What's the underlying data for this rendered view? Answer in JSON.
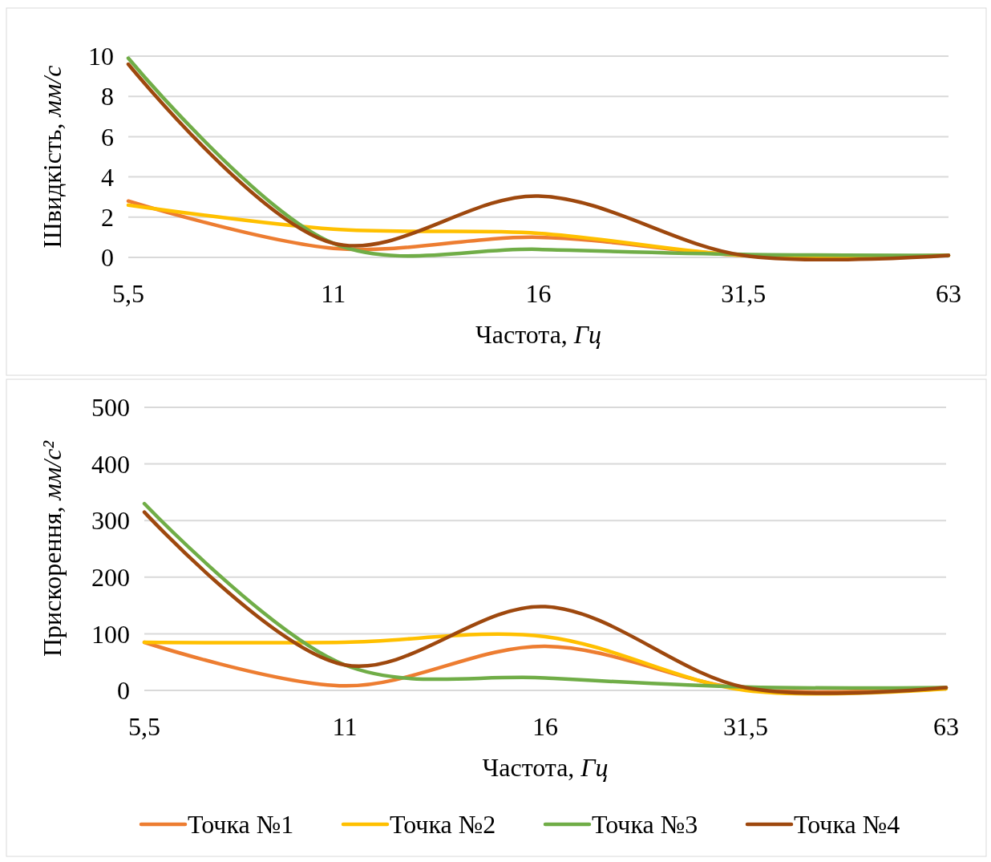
{
  "chart_data": [
    {
      "type": "line",
      "ylabel": "Швидкість, мм/с",
      "xlabel": "Частота, Гц",
      "categories": [
        "5,5",
        "11",
        "16",
        "31,5",
        "63"
      ],
      "ylim": [
        0,
        10
      ],
      "yticks": [
        0,
        2,
        4,
        6,
        8,
        10
      ],
      "grid": "y",
      "legend": false,
      "series": [
        {
          "color": "#ed7d31",
          "values": [
            2.8,
            0.45,
            1.0,
            0.1,
            0.1
          ]
        },
        {
          "color": "#ffc000",
          "values": [
            2.6,
            1.4,
            1.2,
            0.1,
            0.1
          ]
        },
        {
          "color": "#70ad47",
          "values": [
            9.9,
            0.7,
            0.4,
            0.15,
            0.1
          ]
        },
        {
          "color": "#9e480e",
          "values": [
            9.6,
            0.7,
            3.05,
            0.1,
            0.1
          ]
        }
      ]
    },
    {
      "type": "line",
      "ylabel": "Прискорення, мм/с²",
      "xlabel": "Частота, Гц",
      "categories": [
        "5,5",
        "11",
        "16",
        "31,5",
        "63"
      ],
      "ylim": [
        0,
        500
      ],
      "yticks": [
        0,
        100,
        200,
        300,
        400,
        500
      ],
      "grid": "y",
      "legend": "bottom",
      "series": [
        {
          "name": "Точка №1",
          "color": "#ed7d31",
          "values": [
            85,
            8,
            78,
            2,
            5
          ]
        },
        {
          "name": "Точка №2",
          "color": "#ffc000",
          "values": [
            85,
            85,
            95,
            0,
            3
          ]
        },
        {
          "name": "Точка №3",
          "color": "#70ad47",
          "values": [
            330,
            45,
            22,
            6,
            5
          ]
        },
        {
          "name": "Точка №4",
          "color": "#9e480e",
          "values": [
            315,
            45,
            148,
            5,
            5
          ]
        }
      ]
    }
  ]
}
